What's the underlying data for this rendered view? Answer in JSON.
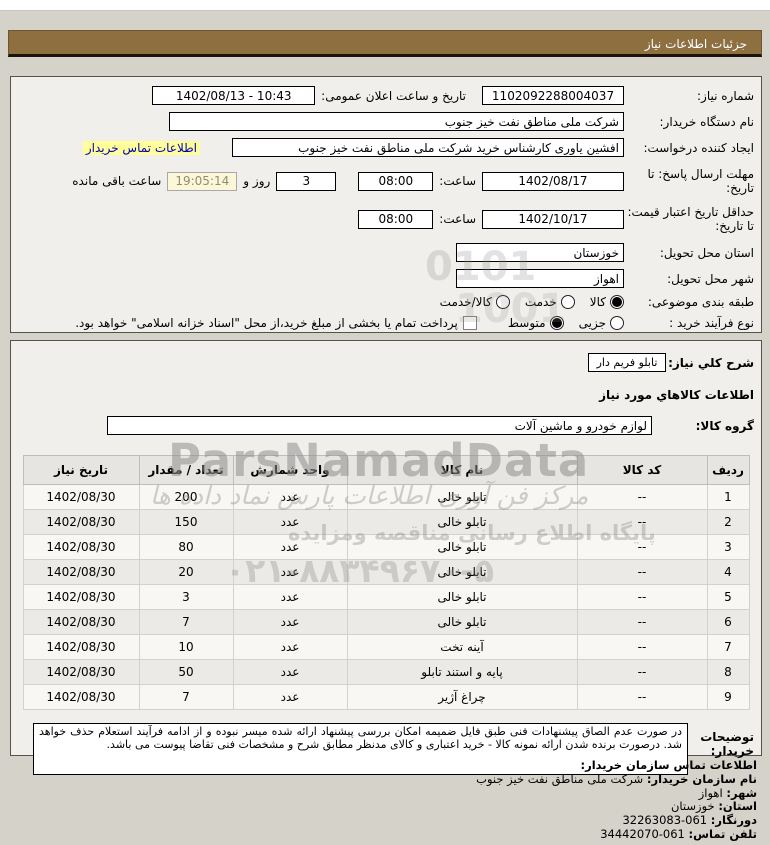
{
  "colors": {
    "bar": "#8d6f40",
    "link_blue": "#0000bb",
    "link_highlight": "#ffff99"
  },
  "titlebar": {
    "title": "جزئیات اطلاعات نیاز"
  },
  "info": {
    "need_number_label": "شماره نیاز:",
    "need_number": "1102092288004037",
    "announce_label": "تاریخ و ساعت اعلان عمومی:",
    "announce_value": "1402/08/13 - 10:43",
    "buyer_org_label": "نام دستگاه خریدار:",
    "buyer_org": "شرکت ملی مناطق نفت خیز جنوب",
    "creator_label": "ایجاد کننده درخواست:",
    "creator": "افشین یاوری کارشناس خرید شرکت ملی مناطق نفت خیز جنوب",
    "contact_link": "اطلاعات تماس خریدار",
    "deadline_label": "مهلت ارسال پاسخ: تا تاریخ:",
    "deadline_date": "1402/08/17",
    "hour_label": "ساعت:",
    "deadline_time": "08:00",
    "days_value": "3",
    "days_label": "روز و",
    "remaining_value": "19:05:14",
    "remaining_label": "ساعت باقی مانده",
    "validity_label": "حداقل تاریخ اعتبار قیمت: تا تاریخ:",
    "validity_date": "1402/10/17",
    "validity_time": "08:00",
    "province_label": "استان محل تحویل:",
    "province": "خوزستان",
    "city_label": "شهر محل تحویل:",
    "city": "اهواز",
    "category_label": "طبقه بندی موضوعی:",
    "category_options": [
      {
        "label": "کالا",
        "selected": true
      },
      {
        "label": "خدمت",
        "selected": false
      },
      {
        "label": "کالا/خدمت",
        "selected": false
      }
    ],
    "process_label": "نوع فرآیند خرید :",
    "process_options": [
      {
        "label": "جزیی",
        "selected": false
      },
      {
        "label": "متوسط",
        "selected": true
      }
    ],
    "treasury_checkbox_label": "پرداخت تمام یا بخشی از مبلغ خرید،از محل \"اسناد خزانه اسلامی\" خواهد بود."
  },
  "need": {
    "desc_label": "شرح کلي نیاز:",
    "desc_value": "تابلو فریم دار",
    "items_heading": "اطلاعات کالاهاي مورد نیاز",
    "group_label": "گروه کالا:",
    "group_value": "لوازم خودرو و ماشین آلات"
  },
  "table": {
    "headers": [
      "ردیف",
      "کد کالا",
      "نام کالا",
      "واحد شمارش",
      "تعداد / مقدار",
      "تاریخ نیاز"
    ],
    "rows": [
      {
        "row": "1",
        "code": "--",
        "name": "تابلو خالی",
        "unit": "عدد",
        "qty": "200",
        "date": "1402/08/30"
      },
      {
        "row": "2",
        "code": "--",
        "name": "تابلو خالی",
        "unit": "عدد",
        "qty": "150",
        "date": "1402/08/30"
      },
      {
        "row": "3",
        "code": "--",
        "name": "تابلو خالی",
        "unit": "عدد",
        "qty": "80",
        "date": "1402/08/30"
      },
      {
        "row": "4",
        "code": "--",
        "name": "تابلو خالی",
        "unit": "عدد",
        "qty": "20",
        "date": "1402/08/30"
      },
      {
        "row": "5",
        "code": "--",
        "name": "تابلو خالی",
        "unit": "عدد",
        "qty": "3",
        "date": "1402/08/30"
      },
      {
        "row": "6",
        "code": "--",
        "name": "تابلو خالی",
        "unit": "عدد",
        "qty": "7",
        "date": "1402/08/30"
      },
      {
        "row": "7",
        "code": "--",
        "name": "آینه تخت",
        "unit": "عدد",
        "qty": "10",
        "date": "1402/08/30"
      },
      {
        "row": "8",
        "code": "--",
        "name": "پایه و استند تابلو",
        "unit": "عدد",
        "qty": "50",
        "date": "1402/08/30"
      },
      {
        "row": "9",
        "code": "--",
        "name": "چراغ آژیر",
        "unit": "عدد",
        "qty": "7",
        "date": "1402/08/30"
      }
    ]
  },
  "notes": {
    "label": "توضیحات خریدار:",
    "text": "در صورت عدم الصاق پیشنهادات فنی طبق فایل ضمیمه امکان بررسی پیشنهاد ارائه شده میسر نبوده و از ادامه فرآیند استعلام حذف خواهد شد. درصورت برنده شدن ارائه نمونه کالا - خرید اعتباری و کالای مدنظر مطابق شرح و مشخصات فنی تقاضا پیوست می باشد."
  },
  "contact": {
    "heading": "اطلاعات تماس سازمان خریدار:",
    "org_label": "نام سازمان خریدار:",
    "org": "شرکت ملی مناطق نفت خیز جنوب",
    "city_label": "شهر:",
    "city": "اهواز",
    "province_label": "استان:",
    "province": "خوزستان",
    "fax_label": "دورنگار:",
    "fax": "32263083-061",
    "phone_label": "تلفن تماس:",
    "phone": "34442070-061"
  },
  "watermark": {
    "brand": "ParsNamadData",
    "line1": "مرکز فن آوری اطلاعات پارس نماد داده ها",
    "line2": "پایگاه اطلاع رسانی مناقصه ومزایده",
    "phone": "۰۲۱-۸۸۳۴۹۶۷۰-۵",
    "digits1": "0101",
    "digits2": "1001"
  }
}
